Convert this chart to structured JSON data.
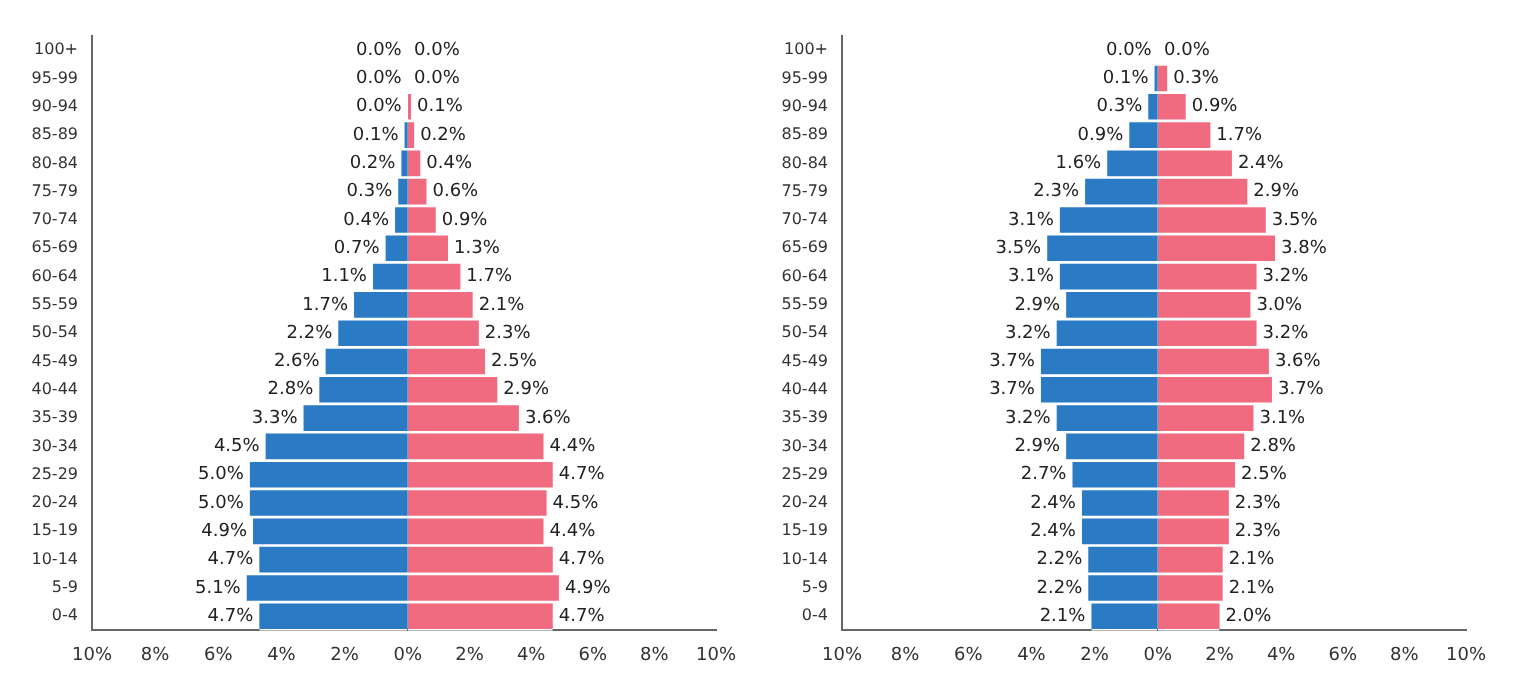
{
  "chart_data": [
    {
      "type": "bar",
      "orientation": "horizontal",
      "grid": false,
      "legend": false,
      "categories": [
        "100+",
        "95-99",
        "90-94",
        "85-89",
        "80-84",
        "75-79",
        "70-74",
        "65-69",
        "60-64",
        "55-59",
        "50-54",
        "45-49",
        "40-44",
        "35-39",
        "30-34",
        "25-29",
        "20-24",
        "15-19",
        "10-14",
        "5-9",
        "0-4"
      ],
      "xlim": [
        10,
        0
      ],
      "xticks": [
        {
          "value": 10,
          "label": "10%"
        },
        {
          "value": 8,
          "label": "8%"
        },
        {
          "value": 6,
          "label": "6%"
        },
        {
          "value": 4,
          "label": "4%"
        },
        {
          "value": 2,
          "label": "2%"
        },
        {
          "value": 0,
          "label": "0%"
        }
      ],
      "series": [
        {
          "color": "#2b7bc4",
          "values": [
            0.0,
            0.0,
            0.0,
            0.1,
            0.2,
            0.3,
            0.4,
            0.7,
            1.1,
            1.7,
            2.2,
            2.6,
            2.8,
            3.3,
            4.5,
            5.0,
            5.0,
            4.9,
            4.7,
            5.1,
            4.7
          ],
          "value_labels": [
            "0.0%",
            "0.0%",
            "0.0%",
            "0.1%",
            "0.2%",
            "0.3%",
            "0.4%",
            "0.7%",
            "1.1%",
            "1.7%",
            "2.2%",
            "2.6%",
            "2.8%",
            "3.3%",
            "4.5%",
            "5.0%",
            "5.0%",
            "4.9%",
            "4.7%",
            "5.1%",
            "4.7%"
          ]
        }
      ]
    },
    {
      "type": "bar",
      "orientation": "horizontal",
      "grid": false,
      "legend": false,
      "tick_labels": "x",
      "xlim": [
        0,
        10
      ],
      "xticks": [
        {
          "value": 0,
          "label": null
        },
        {
          "value": 2,
          "label": "2%"
        },
        {
          "value": 4,
          "label": "4%"
        },
        {
          "value": 6,
          "label": "6%"
        },
        {
          "value": 8,
          "label": "8%"
        },
        {
          "value": 10,
          "label": "10%"
        }
      ],
      "series": [
        {
          "color": "#f06b80",
          "values": [
            0.0,
            0.0,
            0.1,
            0.2,
            0.4,
            0.6,
            0.9,
            1.3,
            1.7,
            2.1,
            2.3,
            2.5,
            2.9,
            3.6,
            4.4,
            4.7,
            4.5,
            4.4,
            4.7,
            4.9,
            4.7
          ],
          "value_labels": [
            "0.0%",
            "0.0%",
            "0.1%",
            "0.2%",
            "0.4%",
            "0.6%",
            "0.9%",
            "1.3%",
            "1.7%",
            "2.1%",
            "2.3%",
            "2.5%",
            "2.9%",
            "3.6%",
            "4.4%",
            "4.7%",
            "4.5%",
            "4.4%",
            "4.7%",
            "4.9%",
            "4.7%"
          ]
        }
      ]
    },
    {
      "type": "bar",
      "orientation": "horizontal",
      "grid": false,
      "legend": false,
      "categories": [
        "100+",
        "95-99",
        "90-94",
        "85-89",
        "80-84",
        "75-79",
        "70-74",
        "65-69",
        "60-64",
        "55-59",
        "50-54",
        "45-49",
        "40-44",
        "35-39",
        "30-34",
        "25-29",
        "20-24",
        "15-19",
        "10-14",
        "5-9",
        "0-4"
      ],
      "xlim": [
        10,
        0
      ],
      "xticks": [
        {
          "value": 10,
          "label": "10%"
        },
        {
          "value": 8,
          "label": "8%"
        },
        {
          "value": 6,
          "label": "6%"
        },
        {
          "value": 4,
          "label": "4%"
        },
        {
          "value": 2,
          "label": "2%"
        },
        {
          "value": 0,
          "label": "0%"
        }
      ],
      "series": [
        {
          "color": "#2b7bc4",
          "values": [
            0.0,
            0.1,
            0.3,
            0.9,
            1.6,
            2.3,
            3.1,
            3.5,
            3.1,
            2.9,
            3.2,
            3.7,
            3.7,
            3.2,
            2.9,
            2.7,
            2.4,
            2.4,
            2.2,
            2.2,
            2.1
          ],
          "value_labels": [
            "0.0%",
            "0.1%",
            "0.3%",
            "0.9%",
            "1.6%",
            "2.3%",
            "3.1%",
            "3.5%",
            "3.1%",
            "2.9%",
            "3.2%",
            "3.7%",
            "3.7%",
            "3.2%",
            "2.9%",
            "2.7%",
            "2.4%",
            "2.4%",
            "2.2%",
            "2.2%",
            "2.1%"
          ]
        }
      ]
    },
    {
      "type": "bar",
      "orientation": "horizontal",
      "grid": false,
      "legend": false,
      "tick_labels": "x",
      "xlim": [
        0,
        10
      ],
      "xticks": [
        {
          "value": 0,
          "label": null
        },
        {
          "value": 2,
          "label": "2%"
        },
        {
          "value": 4,
          "label": "4%"
        },
        {
          "value": 6,
          "label": "6%"
        },
        {
          "value": 8,
          "label": "8%"
        },
        {
          "value": 10,
          "label": "10%"
        }
      ],
      "series": [
        {
          "color": "#f06b80",
          "values": [
            0.0,
            0.3,
            0.9,
            1.7,
            2.4,
            2.9,
            3.5,
            3.8,
            3.2,
            3.0,
            3.2,
            3.6,
            3.7,
            3.1,
            2.8,
            2.5,
            2.3,
            2.3,
            2.1,
            2.1,
            2.0
          ],
          "value_labels": [
            "0.0%",
            "0.3%",
            "0.9%",
            "1.7%",
            "2.4%",
            "2.9%",
            "3.5%",
            "3.8%",
            "3.2%",
            "3.0%",
            "3.2%",
            "3.6%",
            "3.7%",
            "3.1%",
            "2.8%",
            "2.5%",
            "2.3%",
            "2.3%",
            "2.1%",
            "2.1%",
            "2.0%"
          ]
        }
      ]
    }
  ]
}
